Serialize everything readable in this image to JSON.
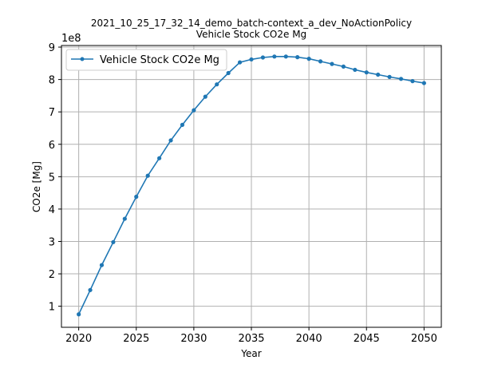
{
  "chart_data": {
    "type": "line",
    "title": "2021_10_25_17_32_14_demo_batch-context_a_dev_NoActionPolicy",
    "subtitle": "Vehicle Stock CO2e Mg",
    "xlabel": "Year",
    "ylabel": "CO2e [Mg]",
    "y_offset_label": "1e8",
    "xlim": [
      2018.5,
      2051.5
    ],
    "ylim": [
      0.35,
      9.05
    ],
    "xticks": [
      2020,
      2025,
      2030,
      2035,
      2040,
      2045,
      2050
    ],
    "yticks": [
      1,
      2,
      3,
      4,
      5,
      6,
      7,
      8,
      9
    ],
    "grid": true,
    "legend_position": "upper-left",
    "series": [
      {
        "name": "Vehicle Stock CO2e Mg",
        "color": "#1f77b4",
        "x": [
          2020,
          2021,
          2022,
          2023,
          2024,
          2025,
          2026,
          2027,
          2028,
          2029,
          2030,
          2031,
          2032,
          2033,
          2034,
          2035,
          2036,
          2037,
          2038,
          2039,
          2040,
          2041,
          2042,
          2043,
          2044,
          2045,
          2046,
          2047,
          2048,
          2049,
          2050
        ],
        "y": [
          0.75,
          1.5,
          2.27,
          2.98,
          3.7,
          4.38,
          5.03,
          5.57,
          6.12,
          6.6,
          7.05,
          7.47,
          7.85,
          8.2,
          8.53,
          8.62,
          8.68,
          8.71,
          8.71,
          8.69,
          8.64,
          8.56,
          8.48,
          8.4,
          8.3,
          8.22,
          8.15,
          8.08,
          8.02,
          7.95,
          7.89
        ]
      }
    ]
  }
}
